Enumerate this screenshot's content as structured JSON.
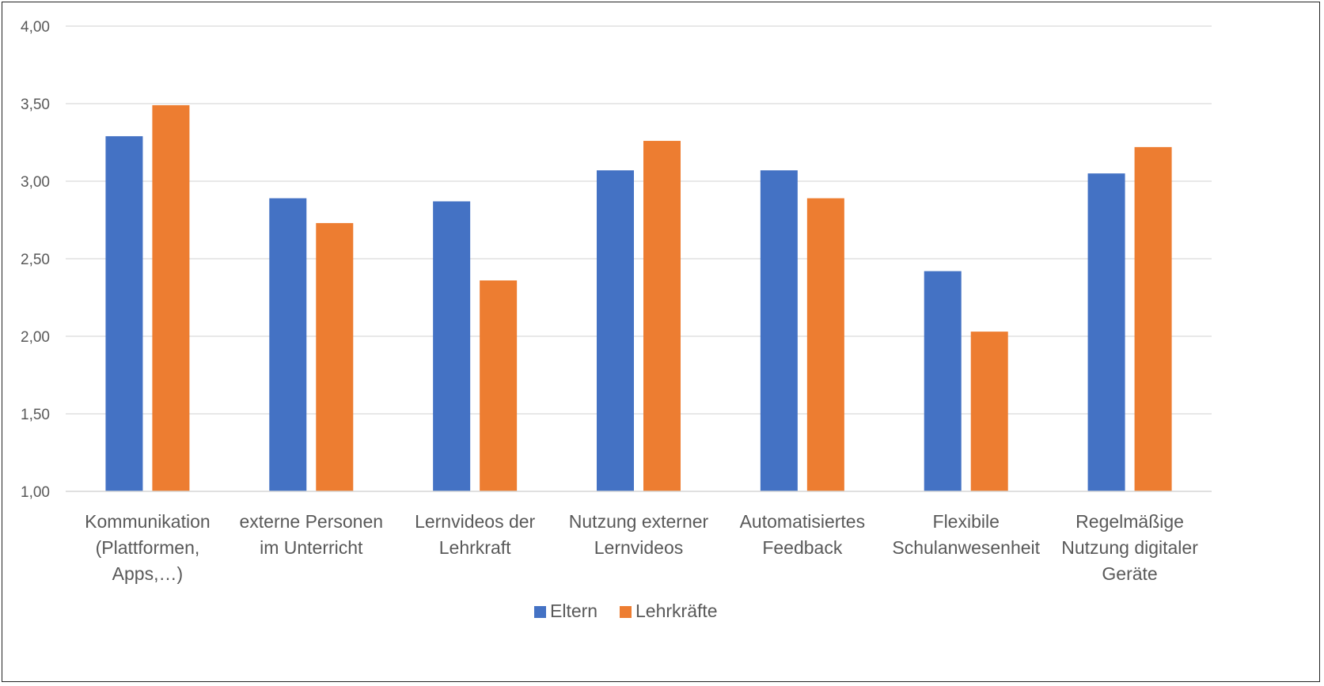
{
  "chart_data": {
    "type": "bar",
    "categories": [
      [
        "Kommunikation",
        "(Plattformen,",
        "Apps,…)"
      ],
      [
        "externe Personen",
        "im  Unterricht"
      ],
      [
        "Lernvideos der",
        "Lehrkraft"
      ],
      [
        "Nutzung externer",
        "Lernvideos"
      ],
      [
        "Automatisiertes",
        "Feedback"
      ],
      [
        "Flexibile",
        "Schulanwesenheit"
      ],
      [
        "Regelmäßige",
        "Nutzung digitaler",
        "Geräte"
      ]
    ],
    "series": [
      {
        "name": "Eltern",
        "color": "#4472C4",
        "values": [
          3.29,
          2.89,
          2.87,
          3.07,
          3.07,
          2.42,
          3.05
        ]
      },
      {
        "name": "Lehrkräfte",
        "color": "#ED7D31",
        "values": [
          3.49,
          2.73,
          2.36,
          3.26,
          2.89,
          2.03,
          3.22
        ]
      }
    ],
    "ylim": [
      1.0,
      4.0
    ],
    "yticks": [
      "1,00",
      "1,50",
      "2,00",
      "2,50",
      "3,00",
      "3,50",
      "4,00"
    ],
    "ytick_values": [
      1.0,
      1.5,
      2.0,
      2.5,
      3.0,
      3.5,
      4.0
    ],
    "grid": true,
    "gridline_color": "#D9D9D9",
    "legend": "bottom",
    "title": "",
    "xlabel": "",
    "ylabel": ""
  }
}
